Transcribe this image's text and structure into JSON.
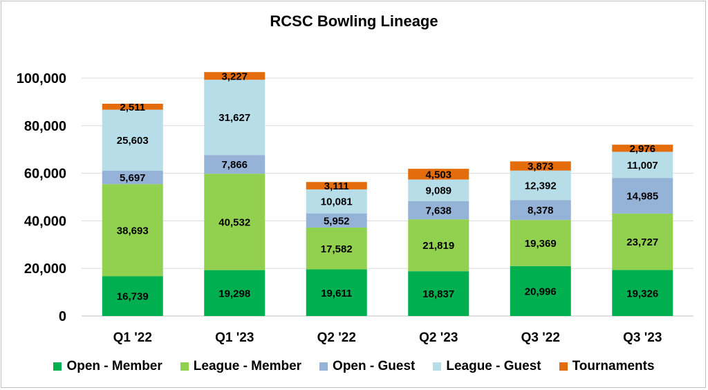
{
  "chart_data": {
    "type": "bar",
    "stacked": true,
    "title": "RCSC Bowling Lineage",
    "xlabel": "",
    "ylabel": "",
    "ylim": [
      0,
      100000
    ],
    "yticks": [
      "0",
      "20,000",
      "40,000",
      "60,000",
      "80,000",
      "100,000"
    ],
    "grid": true,
    "legend_position": "bottom",
    "categories": [
      "Q1 '22",
      "Q1 '23",
      "Q2 '22",
      "Q2 '23",
      "Q3 '22",
      "Q3 '23"
    ],
    "series": [
      {
        "name": "Open - Member",
        "color": "#00b050",
        "values": [
          16739,
          19298,
          19611,
          18837,
          20996,
          19326
        ]
      },
      {
        "name": "League - Member",
        "color": "#92d050",
        "values": [
          38693,
          40532,
          17582,
          21819,
          19369,
          23727
        ]
      },
      {
        "name": "Open - Guest",
        "color": "#95b3d7",
        "values": [
          5697,
          7866,
          5952,
          7638,
          8378,
          14985
        ]
      },
      {
        "name": "League - Guest",
        "color": "#b7dee8",
        "values": [
          25603,
          31627,
          10081,
          9089,
          12392,
          11007
        ]
      },
      {
        "name": "Tournaments",
        "color": "#e46c0a",
        "values": [
          2511,
          3227,
          3111,
          4503,
          3873,
          2976
        ]
      }
    ]
  }
}
